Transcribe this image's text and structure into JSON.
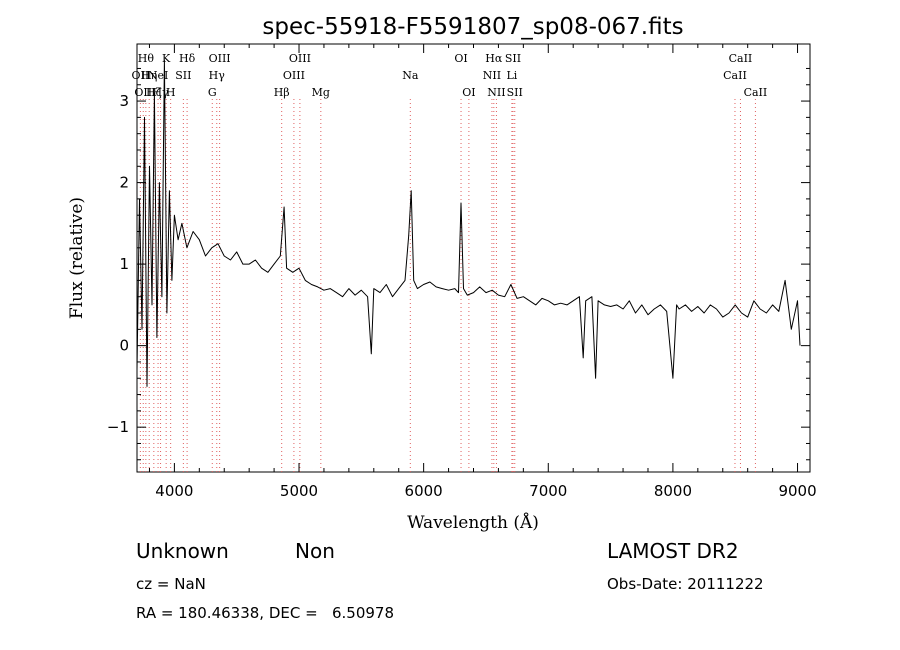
{
  "chart_data": {
    "type": "line",
    "title": "spec-55918-F5591807_sp08-067.fits",
    "xlabel": "Wavelength (Å)",
    "ylabel": "Flux (relative)",
    "xlim": [
      3700,
      9100
    ],
    "ylim": [
      -1.55,
      3.7
    ],
    "xticks": [
      4000,
      5000,
      6000,
      7000,
      8000,
      9000
    ],
    "yticks": [
      -1,
      0,
      1,
      2,
      3
    ],
    "grid": false,
    "series": [
      {
        "x": [
          3700,
          3720,
          3740,
          3760,
          3780,
          3800,
          3820,
          3840,
          3860,
          3880,
          3900,
          3920,
          3940,
          3960,
          3980,
          4000,
          4030,
          4060,
          4100,
          4150,
          4200,
          4250,
          4300,
          4350,
          4400,
          4450,
          4500,
          4550,
          4600,
          4650,
          4700,
          4750,
          4800,
          4850,
          4880,
          4900,
          4950,
          5000,
          5050,
          5100,
          5150,
          5200,
          5250,
          5300,
          5350,
          5400,
          5450,
          5500,
          5550,
          5580,
          5600,
          5650,
          5700,
          5750,
          5800,
          5850,
          5880,
          5900,
          5920,
          5950,
          6000,
          6050,
          6100,
          6150,
          6200,
          6250,
          6280,
          6300,
          6320,
          6350,
          6400,
          6450,
          6500,
          6550,
          6600,
          6650,
          6700,
          6750,
          6800,
          6850,
          6900,
          6950,
          7000,
          7050,
          7100,
          7150,
          7200,
          7250,
          7280,
          7300,
          7350,
          7380,
          7400,
          7450,
          7500,
          7550,
          7600,
          7650,
          7700,
          7750,
          7800,
          7850,
          7900,
          7950,
          8000,
          8030,
          8050,
          8100,
          8150,
          8200,
          8250,
          8300,
          8350,
          8400,
          8450,
          8500,
          8550,
          8600,
          8650,
          8700,
          8750,
          8800,
          8850,
          8900,
          8950,
          9000,
          9020
        ],
        "y": [
          -0.3,
          1.8,
          0.2,
          2.8,
          -0.5,
          2.2,
          0.5,
          3.1,
          0.1,
          2.0,
          0.6,
          3.5,
          0.4,
          1.9,
          0.8,
          1.6,
          1.3,
          1.5,
          1.2,
          1.4,
          1.3,
          1.1,
          1.2,
          1.25,
          1.1,
          1.05,
          1.15,
          1.0,
          1.0,
          1.05,
          0.95,
          0.9,
          1.0,
          1.1,
          1.7,
          0.95,
          0.9,
          0.95,
          0.8,
          0.75,
          0.72,
          0.68,
          0.7,
          0.65,
          0.6,
          0.7,
          0.62,
          0.68,
          0.6,
          -0.1,
          0.7,
          0.65,
          0.75,
          0.6,
          0.7,
          0.8,
          1.35,
          1.9,
          0.8,
          0.7,
          0.75,
          0.78,
          0.72,
          0.7,
          0.68,
          0.7,
          0.65,
          1.75,
          0.7,
          0.62,
          0.65,
          0.72,
          0.65,
          0.68,
          0.62,
          0.6,
          0.75,
          0.58,
          0.6,
          0.55,
          0.5,
          0.58,
          0.55,
          0.5,
          0.52,
          0.5,
          0.55,
          0.6,
          -0.15,
          0.55,
          0.6,
          -0.4,
          0.55,
          0.5,
          0.48,
          0.5,
          0.45,
          0.55,
          0.4,
          0.5,
          0.38,
          0.45,
          0.5,
          0.42,
          -0.4,
          0.5,
          0.45,
          0.5,
          0.42,
          0.48,
          0.4,
          0.5,
          0.45,
          0.35,
          0.4,
          0.5,
          0.4,
          0.35,
          0.55,
          0.45,
          0.4,
          0.5,
          0.42,
          0.8,
          0.2,
          0.55,
          0.0
        ]
      }
    ],
    "lines": [
      {
        "w": 3727,
        "label": "OII",
        "row": 1
      },
      {
        "w": 3750,
        "label": "OII",
        "row": 2
      },
      {
        "w": 3771,
        "label": "Hθ",
        "row": 0
      },
      {
        "w": 3798,
        "label": "Hη",
        "row": 1
      },
      {
        "w": 3835,
        "label": "Hζ",
        "row": 2
      },
      {
        "w": 3869,
        "label": "NeI",
        "row": 1
      },
      {
        "w": 3889,
        "label": "Hγ",
        "row": 2
      },
      {
        "w": 3934,
        "label": "K",
        "row": 0
      },
      {
        "w": 3970,
        "label": "H",
        "row": 2
      },
      {
        "w": 4072,
        "label": "SII",
        "row": 1
      },
      {
        "w": 4102,
        "label": "Hδ",
        "row": 0
      },
      {
        "w": 4304,
        "label": "G",
        "row": 2
      },
      {
        "w": 4340,
        "label": "Hγ",
        "row": 1
      },
      {
        "w": 4363,
        "label": "OIII",
        "row": 0
      },
      {
        "w": 4861,
        "label": "Hβ",
        "row": 2
      },
      {
        "w": 4959,
        "label": "OIII",
        "row": 1
      },
      {
        "w": 5007,
        "label": "OIII",
        "row": 0
      },
      {
        "w": 5175,
        "label": "Mg",
        "row": 2
      },
      {
        "w": 5893,
        "label": "Na",
        "row": 1
      },
      {
        "w": 6300,
        "label": "OI",
        "row": 0
      },
      {
        "w": 6363,
        "label": "OI",
        "row": 2
      },
      {
        "w": 6548,
        "label": "NII",
        "row": 1
      },
      {
        "w": 6563,
        "label": "Hα",
        "row": 0
      },
      {
        "w": 6584,
        "label": "NII",
        "row": 2
      },
      {
        "w": 6708,
        "label": "Li",
        "row": 1
      },
      {
        "w": 6717,
        "label": "SII",
        "row": 0
      },
      {
        "w": 6731,
        "label": "SII",
        "row": 2
      },
      {
        "w": 8498,
        "label": "CaII",
        "row": 1
      },
      {
        "w": 8542,
        "label": "CaII",
        "row": 0
      },
      {
        "w": 8662,
        "label": "CaII",
        "row": 2
      }
    ],
    "line_color": "#000000",
    "marker_color": "#e06060"
  },
  "info": {
    "class": "Unknown",
    "subclass": "Non",
    "survey": "LAMOST DR2",
    "cz": "cz = NaN",
    "obs_date": "Obs-Date: 20111222",
    "radec": "RA = 180.46338, DEC =   6.50978"
  }
}
